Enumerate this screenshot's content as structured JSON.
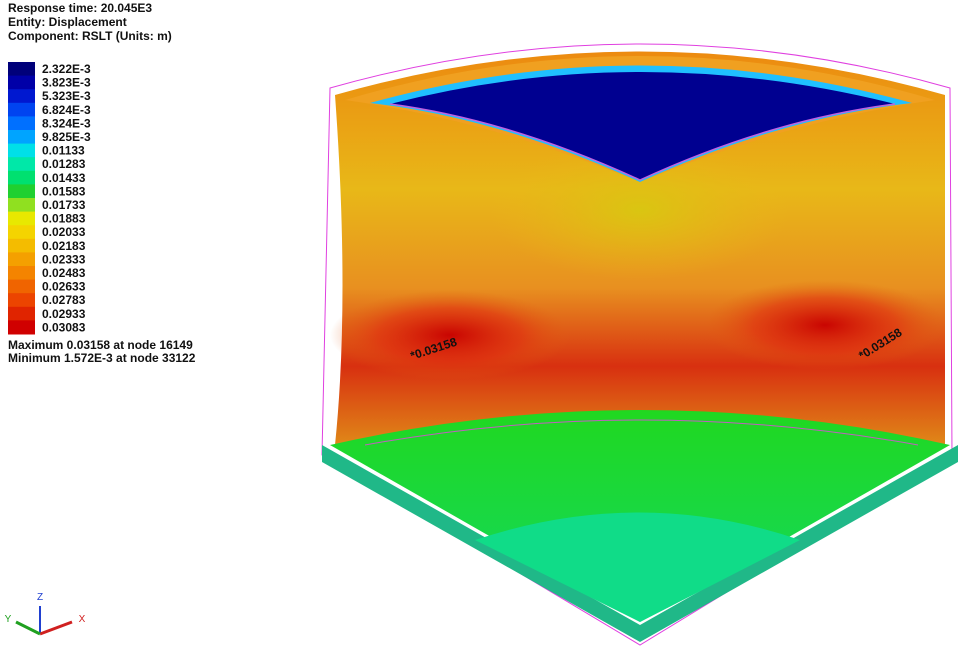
{
  "header": {
    "lines": [
      "Response time: 20.045E3",
      "Entity: Displacement",
      "Component: RSLT (Units: m)"
    ]
  },
  "legend": {
    "items": [
      {
        "label": "2.322E-3",
        "color": "#00007a"
      },
      {
        "label": "3.823E-3",
        "color": "#0000a8"
      },
      {
        "label": "5.323E-3",
        "color": "#0018d0"
      },
      {
        "label": "6.824E-3",
        "color": "#0044f0"
      },
      {
        "label": "8.324E-3",
        "color": "#0070ff"
      },
      {
        "label": "9.825E-3",
        "color": "#00a4ff"
      },
      {
        "label": "0.01133",
        "color": "#00e0e8"
      },
      {
        "label": "0.01283",
        "color": "#00e8a8"
      },
      {
        "label": "0.01433",
        "color": "#00e070"
      },
      {
        "label": "0.01583",
        "color": "#20d030"
      },
      {
        "label": "0.01733",
        "color": "#90e020"
      },
      {
        "label": "0.01883",
        "color": "#e8e800"
      },
      {
        "label": "0.02033",
        "color": "#f4d400"
      },
      {
        "label": "0.02183",
        "color": "#f4bc00"
      },
      {
        "label": "0.02333",
        "color": "#f4a000"
      },
      {
        "label": "0.02483",
        "color": "#f48400"
      },
      {
        "label": "0.02633",
        "color": "#f06400"
      },
      {
        "label": "0.02783",
        "color": "#ec4400"
      },
      {
        "label": "0.02933",
        "color": "#e02400"
      },
      {
        "label": "0.03083",
        "color": "#d00000"
      }
    ]
  },
  "extrema": [
    "Maximum 0.03158 at node 16149",
    "Minimum 1.572E-3 at node 33122"
  ],
  "annotations": [
    "*0.03158",
    "*0.03158"
  ],
  "axes": {
    "z": "Z",
    "y": "Y",
    "x": "X"
  }
}
